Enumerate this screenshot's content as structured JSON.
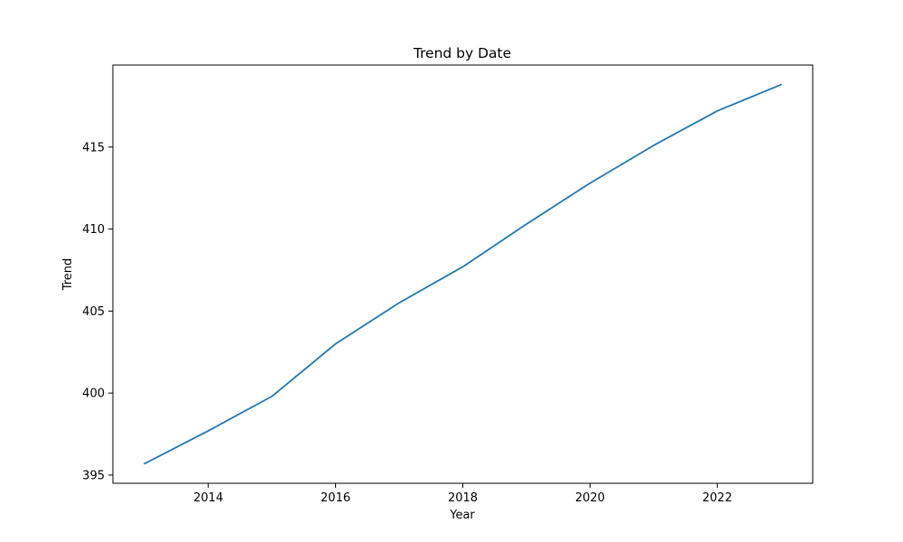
{
  "chart_data": {
    "type": "line",
    "title": "Trend by Date",
    "xlabel": "Year",
    "ylabel": "Trend",
    "xlim": [
      2012.5,
      2023.5
    ],
    "ylim": [
      394.5,
      420.0
    ],
    "x_ticks": [
      2014,
      2016,
      2018,
      2020,
      2022
    ],
    "y_ticks": [
      395,
      400,
      405,
      410,
      415
    ],
    "grid": false,
    "series": [
      {
        "color": "#1f77b4",
        "points": [
          {
            "x": 2013,
            "y": 395.7
          },
          {
            "x": 2014,
            "y": 397.7
          },
          {
            "x": 2015,
            "y": 399.8
          },
          {
            "x": 2016,
            "y": 403.0
          },
          {
            "x": 2017,
            "y": 405.5
          },
          {
            "x": 2018,
            "y": 407.7
          },
          {
            "x": 2019,
            "y": 410.3
          },
          {
            "x": 2020,
            "y": 412.8
          },
          {
            "x": 2021,
            "y": 415.1
          },
          {
            "x": 2022,
            "y": 417.2
          },
          {
            "x": 2023,
            "y": 418.8
          }
        ]
      }
    ]
  }
}
